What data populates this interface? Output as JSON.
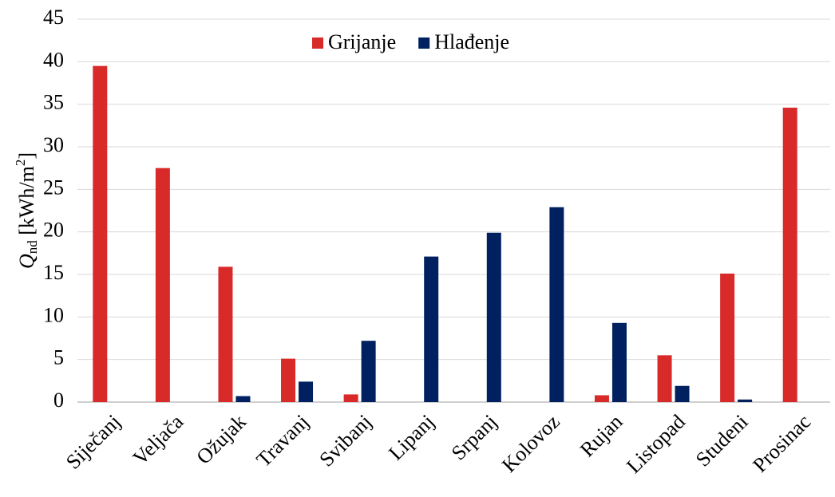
{
  "chart_data": {
    "type": "bar",
    "ylabel_parts": [
      "Q",
      "nd",
      " [kWh/m",
      "2",
      "]"
    ],
    "categories": [
      "Siječanj",
      "Veljača",
      "Ožujak",
      "Travanj",
      "Svibanj",
      "Lipanj",
      "Srpanj",
      "Kolovoz",
      "Rujan",
      "Listopad",
      "Studeni",
      "Prosinac"
    ],
    "series": [
      {
        "name": "Grijanje",
        "color": "#d92a2a",
        "values": [
          39.5,
          27.5,
          15.9,
          5.1,
          0.9,
          0,
          0,
          0,
          0.8,
          5.5,
          15.1,
          34.6
        ]
      },
      {
        "name": "Hlađenje",
        "color": "#002060",
        "values": [
          0,
          0,
          0.7,
          2.4,
          7.2,
          17.1,
          19.9,
          22.9,
          9.3,
          1.9,
          0.3,
          0
        ]
      }
    ],
    "ylim": [
      0,
      45
    ],
    "yticks": [
      0,
      5,
      10,
      15,
      20,
      25,
      30,
      35,
      40,
      45
    ],
    "grid": true,
    "legend": "top"
  }
}
